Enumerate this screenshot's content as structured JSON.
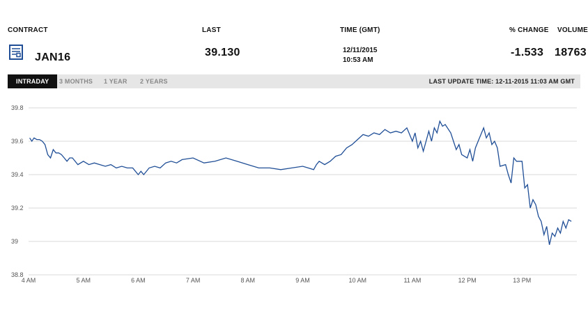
{
  "header": {
    "contract_label": "CONTRACT",
    "last_label": "LAST",
    "time_label": "TIME (GMT)",
    "pct_change_label": "% CHANGE",
    "volume_label": "VOLUME"
  },
  "quote": {
    "contract": "JAN16",
    "last": "39.130",
    "date": "12/11/2015",
    "time": "10:53 AM",
    "pct_change": "-1.533",
    "volume": "18763",
    "icon": "contract-spec-icon"
  },
  "tabs": [
    {
      "label": "INTRADAY",
      "active": true
    },
    {
      "label": "3 MONTHS",
      "active": false
    },
    {
      "label": "1 YEAR",
      "active": false
    },
    {
      "label": "2 YEARS",
      "active": false
    }
  ],
  "last_update": "LAST UPDATE TIME: 12-11-2015 11:03 AM GMT",
  "colors": {
    "line": "#1f4e96",
    "grid": "#d9d9d9",
    "tab_active_bg": "#111111",
    "tab_bar_bg": "#e6e6e6"
  },
  "chart_data": {
    "type": "line",
    "x_tick_labels": [
      "4 AM",
      "5 AM",
      "6 AM",
      "7 AM",
      "8 AM",
      "9 AM",
      "10 AM",
      "11 AM",
      "12 PM",
      "13 PM"
    ],
    "y_tick_labels": [
      "38.8",
      "39",
      "39.2",
      "39.4",
      "39.6",
      "39.8"
    ],
    "ylim": [
      38.8,
      39.8
    ],
    "xlim": [
      4.0,
      14.0
    ],
    "grid": true,
    "series": [
      {
        "x": [
          4.02,
          4.06,
          4.1,
          4.15,
          4.2,
          4.25,
          4.3,
          4.35,
          4.4,
          4.45,
          4.5,
          4.55,
          4.6,
          4.65,
          4.7,
          4.75,
          4.8,
          4.9,
          5.0,
          5.1,
          5.2,
          5.3,
          5.4,
          5.5,
          5.6,
          5.7,
          5.8,
          5.9,
          6.0,
          6.05,
          6.1,
          6.2,
          6.3,
          6.4,
          6.5,
          6.6,
          6.7,
          6.8,
          7.0,
          7.2,
          7.4,
          7.6,
          7.8,
          8.0,
          8.2,
          8.4,
          8.6,
          8.8,
          9.0,
          9.1,
          9.2,
          9.25,
          9.3,
          9.4,
          9.5,
          9.6,
          9.7,
          9.8,
          9.9,
          10.0,
          10.1,
          10.2,
          10.3,
          10.4,
          10.5,
          10.6,
          10.7,
          10.8,
          10.9,
          10.95,
          11.0,
          11.05,
          11.1,
          11.15,
          11.2,
          11.3,
          11.35,
          11.4,
          11.45,
          11.5,
          11.55,
          11.6,
          11.7,
          11.75,
          11.8,
          11.85,
          11.9,
          12.0,
          12.05,
          12.1,
          12.15,
          12.2,
          12.3,
          12.35,
          12.4,
          12.45,
          12.5,
          12.55,
          12.6,
          12.7,
          12.75,
          12.8,
          12.85,
          12.9,
          13.0,
          13.05,
          13.1,
          13.15,
          13.2,
          13.25,
          13.3,
          13.35,
          13.4,
          13.45,
          13.5,
          13.55,
          13.6,
          13.65,
          13.7,
          13.75,
          13.8,
          13.85,
          13.9
        ],
        "y": [
          39.62,
          39.6,
          39.62,
          39.61,
          39.61,
          39.6,
          39.58,
          39.52,
          39.5,
          39.55,
          39.53,
          39.53,
          39.52,
          39.5,
          39.48,
          39.5,
          39.5,
          39.46,
          39.48,
          39.46,
          39.47,
          39.46,
          39.45,
          39.46,
          39.44,
          39.45,
          39.44,
          39.44,
          39.4,
          39.42,
          39.4,
          39.44,
          39.45,
          39.44,
          39.47,
          39.48,
          39.47,
          39.49,
          39.5,
          39.47,
          39.48,
          39.5,
          39.48,
          39.46,
          39.44,
          39.44,
          39.43,
          39.44,
          39.45,
          39.44,
          39.43,
          39.46,
          39.48,
          39.46,
          39.48,
          39.51,
          39.52,
          39.56,
          39.58,
          39.61,
          39.64,
          39.63,
          39.65,
          39.64,
          39.67,
          39.65,
          39.66,
          39.65,
          39.68,
          39.64,
          39.6,
          39.65,
          39.56,
          39.6,
          39.54,
          39.66,
          39.6,
          39.68,
          39.65,
          39.72,
          39.69,
          39.7,
          39.65,
          39.6,
          39.55,
          39.58,
          39.52,
          39.5,
          39.55,
          39.48,
          39.56,
          39.6,
          39.68,
          39.62,
          39.65,
          39.58,
          39.6,
          39.56,
          39.45,
          39.46,
          39.4,
          39.35,
          39.5,
          39.48,
          39.48,
          39.32,
          39.34,
          39.2,
          39.25,
          39.22,
          39.15,
          39.12,
          39.04,
          39.09,
          38.98,
          39.05,
          39.03,
          39.08,
          39.05,
          39.12,
          39.08,
          39.13,
          39.12
        ]
      }
    ]
  }
}
